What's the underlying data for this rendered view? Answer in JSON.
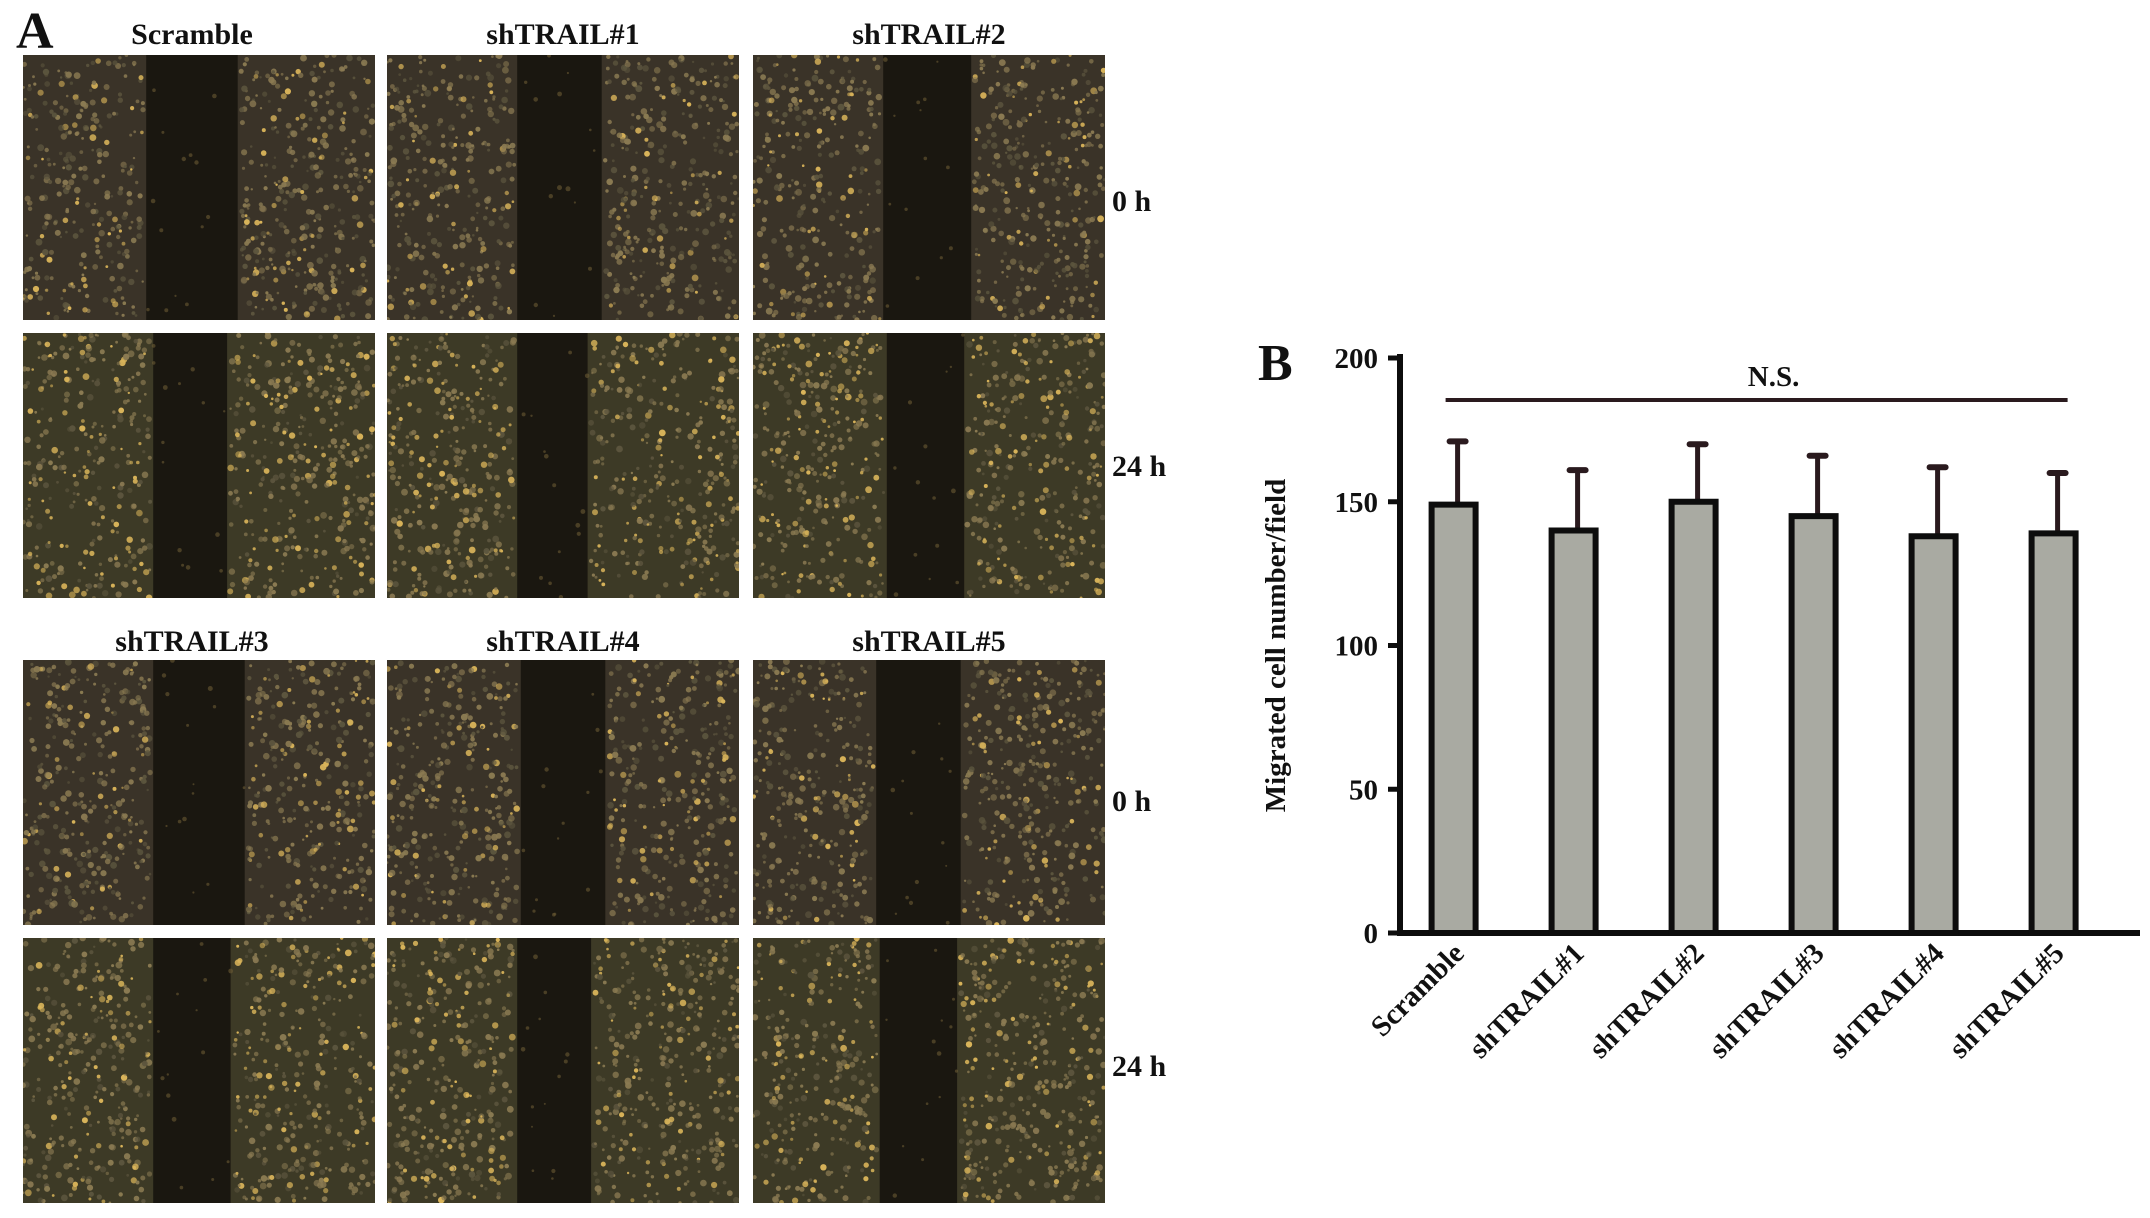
{
  "panel_a": {
    "letter": "A",
    "groups_top": [
      "Scramble",
      "shTRAIL#1",
      "shTRAIL#2"
    ],
    "groups_bottom": [
      "shTRAIL#3",
      "shTRAIL#4",
      "shTRAIL#5"
    ],
    "timepoints": [
      "0 h",
      "24 h"
    ],
    "colors": {
      "cell_dark": "#3a3328",
      "cell_light": "#8a7a52",
      "cell_yellow": "#d9b45a",
      "gap": "#1a1710"
    }
  },
  "panel_b": {
    "letter": "B",
    "significance_label": "N.S."
  },
  "chart_data": {
    "type": "bar",
    "categories": [
      "Scramble",
      "shTRAIL#1",
      "shTRAIL#2",
      "shTRAIL#3",
      "shTRAIL#4",
      "shTRAIL#5"
    ],
    "values": [
      149,
      140,
      150,
      145,
      138,
      139
    ],
    "errors": [
      22,
      21,
      20,
      21,
      24,
      21
    ],
    "ylabel": "Migrated cell number/field",
    "ylim": [
      0,
      200
    ],
    "yticks": [
      0,
      50,
      100,
      150,
      200
    ],
    "grid": false,
    "bar_color": "#a9aaa2",
    "edge_color": "#0d0d0d",
    "error_color": "#2a1a1e"
  }
}
